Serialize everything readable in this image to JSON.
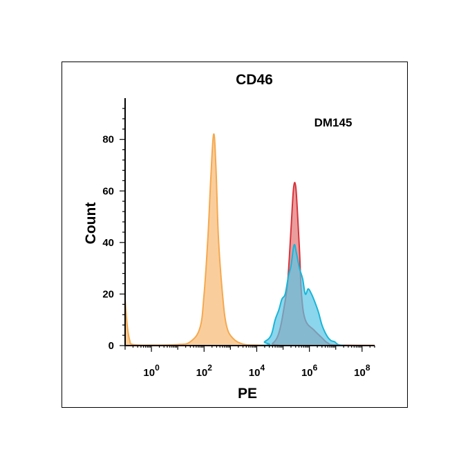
{
  "chart_data": {
    "type": "area",
    "title": "CD46",
    "xlabel": "PE",
    "ylabel": "Count",
    "annotation": "DM145",
    "x_scale": "log",
    "xlim": [
      0.1,
      300000000
    ],
    "ylim": [
      0,
      96
    ],
    "x_ticks": [
      {
        "value": 1,
        "base": "10",
        "exp": "0"
      },
      {
        "value": 100,
        "base": "10",
        "exp": "2"
      },
      {
        "value": 10000,
        "base": "10",
        "exp": "4"
      },
      {
        "value": 1000000,
        "base": "10",
        "exp": "6"
      },
      {
        "value": 100000000,
        "base": "10",
        "exp": "8"
      }
    ],
    "y_ticks": [
      0,
      20,
      40,
      60,
      80
    ],
    "series": [
      {
        "color": "#f5a84e",
        "fill": "#f9c58b",
        "points": [
          [
            0.1,
            18
          ],
          [
            0.12,
            8
          ],
          [
            0.15,
            2
          ],
          [
            0.2,
            0.4
          ],
          [
            1,
            0.2
          ],
          [
            10,
            0.4
          ],
          [
            30,
            1.5
          ],
          [
            70,
            7
          ],
          [
            100,
            20
          ],
          [
            140,
            42
          ],
          [
            180,
            65
          ],
          [
            230,
            82
          ],
          [
            280,
            70
          ],
          [
            350,
            42
          ],
          [
            500,
            20
          ],
          [
            700,
            8
          ],
          [
            1200,
            3
          ],
          [
            3000,
            0.6
          ],
          [
            10000,
            0.2
          ],
          [
            100000,
            0.1
          ],
          [
            10000000,
            0.1
          ],
          [
            300000000,
            0.1
          ]
        ]
      },
      {
        "color": "#d8323a",
        "fill": "#e37373",
        "points": [
          [
            0.1,
            0
          ],
          [
            20000,
            0
          ],
          [
            40000,
            0.8
          ],
          [
            70000,
            5
          ],
          [
            110000,
            15
          ],
          [
            150000,
            25
          ],
          [
            200000,
            45
          ],
          [
            250000,
            61
          ],
          [
            300000,
            62
          ],
          [
            350000,
            52
          ],
          [
            420000,
            37
          ],
          [
            500000,
            20
          ],
          [
            700000,
            10
          ],
          [
            1500000,
            6
          ],
          [
            3000000,
            3
          ],
          [
            5000000,
            1
          ],
          [
            10000000,
            0.2
          ],
          [
            300000000,
            0
          ]
        ]
      },
      {
        "color": "#18b5d8",
        "fill": "#5ac5e4",
        "points": [
          [
            0.1,
            0
          ],
          [
            10000,
            0
          ],
          [
            20000,
            1.5
          ],
          [
            35000,
            4
          ],
          [
            50000,
            10
          ],
          [
            70000,
            14
          ],
          [
            90000,
            18
          ],
          [
            120000,
            20
          ],
          [
            160000,
            27
          ],
          [
            200000,
            31
          ],
          [
            260000,
            39
          ],
          [
            320000,
            36
          ],
          [
            420000,
            30
          ],
          [
            550000,
            26
          ],
          [
            700000,
            20
          ],
          [
            900000,
            22
          ],
          [
            1200000,
            20
          ],
          [
            1600000,
            17
          ],
          [
            2200000,
            13
          ],
          [
            3000000,
            8
          ],
          [
            4500000,
            4
          ],
          [
            6500000,
            2
          ],
          [
            9000000,
            1.5
          ],
          [
            13000000,
            0.3
          ],
          [
            30000000,
            0
          ],
          [
            300000000,
            0
          ]
        ]
      }
    ]
  }
}
